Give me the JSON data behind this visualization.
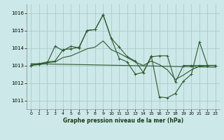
{
  "title": "Graphe pression niveau de la mer (hPa)",
  "bg_color": "#cce8e8",
  "grid_color": "#aacccc",
  "line_color": "#2d5a2d",
  "xlim": [
    -0.5,
    23.5
  ],
  "ylim": [
    1010.5,
    1016.5
  ],
  "yticks": [
    1011,
    1012,
    1013,
    1014,
    1015,
    1016
  ],
  "xticks": [
    0,
    1,
    2,
    3,
    4,
    5,
    6,
    7,
    8,
    9,
    10,
    11,
    12,
    13,
    14,
    15,
    16,
    17,
    18,
    19,
    20,
    21,
    22,
    23
  ],
  "series": [
    {
      "x": [
        0,
        1,
        2,
        3,
        4,
        5,
        6,
        7,
        8,
        9,
        10,
        11,
        12,
        13,
        14,
        15,
        16,
        17,
        18,
        19,
        20,
        21,
        22,
        23
      ],
      "y": [
        1013.0,
        1013.1,
        1013.2,
        1013.25,
        1013.9,
        1013.95,
        1014.05,
        1015.0,
        1015.05,
        1015.9,
        1014.55,
        1014.05,
        1013.5,
        1013.25,
        1012.6,
        1013.5,
        1013.55,
        1013.55,
        1012.05,
        1013.0,
        1013.0,
        1013.0,
        1013.0,
        1013.0
      ],
      "marker": true
    },
    {
      "x": [
        0,
        1,
        2,
        3,
        4,
        5,
        6,
        7,
        8,
        9,
        10,
        11,
        12,
        13,
        14,
        15,
        16,
        17,
        18,
        19,
        20,
        21,
        22,
        23
      ],
      "y": [
        1013.05,
        1013.1,
        1013.15,
        1013.2,
        1013.45,
        1013.55,
        1013.75,
        1013.95,
        1014.05,
        1014.4,
        1013.9,
        1013.7,
        1013.45,
        1013.2,
        1013.0,
        1013.25,
        1013.05,
        1012.75,
        1012.2,
        1012.45,
        1012.75,
        1012.95,
        1013.0,
        1013.0
      ],
      "marker": false
    },
    {
      "x": [
        0,
        1,
        2,
        3,
        4,
        5,
        6,
        7,
        8,
        9,
        10,
        11,
        12,
        13,
        14,
        15,
        16,
        17,
        18,
        19,
        20,
        21,
        22,
        23
      ],
      "y": [
        1013.0,
        1013.05,
        1013.1,
        1014.1,
        1013.85,
        1014.1,
        1014.0,
        1015.0,
        1015.05,
        1015.9,
        1014.55,
        1013.4,
        1013.2,
        1012.5,
        1012.6,
        1013.55,
        1011.2,
        1011.15,
        1011.4,
        1012.1,
        1012.5,
        1014.35,
        1013.0,
        1013.0
      ],
      "marker": true
    },
    {
      "x": [
        0,
        23
      ],
      "y": [
        1013.1,
        1012.9
      ],
      "marker": false
    }
  ]
}
